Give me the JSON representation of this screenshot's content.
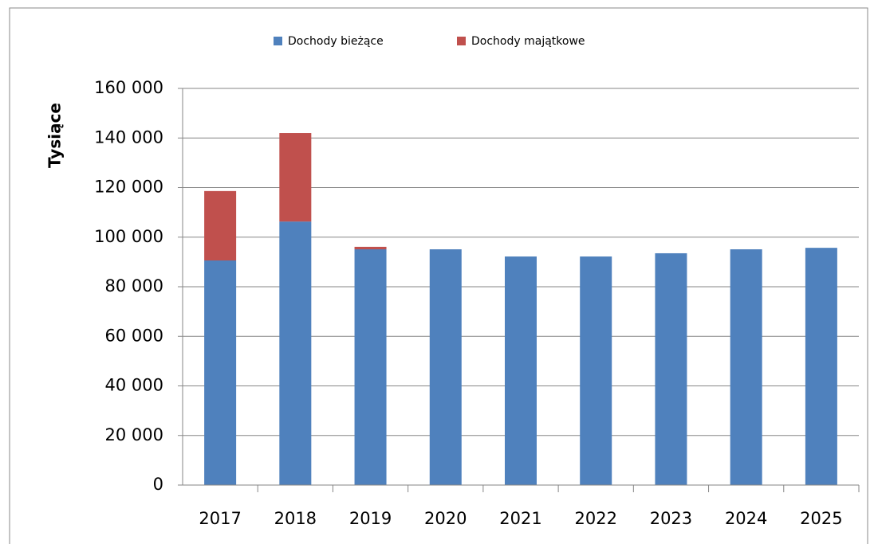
{
  "chart_data": {
    "type": "stacked_bar",
    "y_axis_label": "Tysiące",
    "categories": [
      "2017",
      "2018",
      "2019",
      "2020",
      "2021",
      "2022",
      "2023",
      "2024",
      "2025"
    ],
    "series": [
      {
        "name": "Dochody bieżące",
        "color": "#4f81bd",
        "values": [
          90600,
          106300,
          95100,
          95100,
          92200,
          92200,
          93500,
          95100,
          95700
        ]
      },
      {
        "name": "Dochody majątkowe",
        "color": "#c0504d",
        "values": [
          28000,
          35700,
          1000,
          0,
          0,
          0,
          0,
          0,
          0
        ]
      }
    ],
    "ylim": [
      0,
      160000
    ],
    "yticks": [
      0,
      {
        "value": 20000,
        "label": "20 000"
      },
      {
        "value": 40000,
        "label": "40 000"
      },
      {
        "value": 60000,
        "label": "60 000"
      },
      {
        "value": 80000,
        "label": "80 000"
      },
      {
        "value": 100000,
        "label": "100 000"
      },
      {
        "value": 120000,
        "label": "120 000"
      },
      {
        "value": 140000,
        "label": "140 000"
      },
      {
        "value": 160000,
        "label": "160 000"
      }
    ],
    "grid": true,
    "legend": "top"
  }
}
